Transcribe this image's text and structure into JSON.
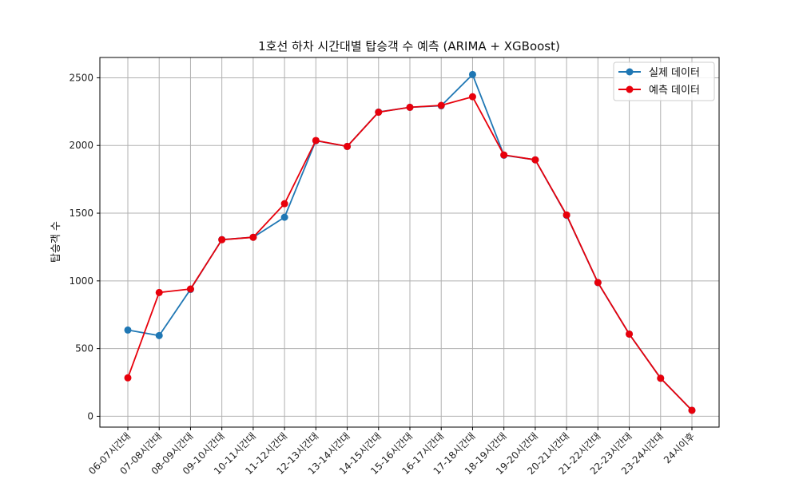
{
  "chart_data": {
    "type": "line",
    "title": "1호선 하차 시간대별 탑승객 수 예측 (ARIMA + XGBoost)",
    "xlabel": "",
    "ylabel": "탑승객 수",
    "categories": [
      "06-07시간대",
      "07-08시간대",
      "08-09시간대",
      "09-10시간대",
      "10-11시간대",
      "11-12시간대",
      "12-13시간대",
      "13-14시간대",
      "14-15시간대",
      "15-16시간대",
      "16-17시간대",
      "17-18시간대",
      "18-19시간대",
      "19-20시간대",
      "20-21시간대",
      "21-22시간대",
      "22-23시간대",
      "23-24시간대",
      "24시이후"
    ],
    "series": [
      {
        "name": "실제 데이터",
        "color": "#1f77b4",
        "values": [
          637,
          596,
          937,
          1305,
          1322,
          1470,
          2035,
          1993,
          2247,
          2282,
          2293,
          2524,
          1928,
          1894,
          1484,
          987,
          607,
          281,
          44
        ]
      },
      {
        "name": "예측 데이터",
        "color": "#e8000b",
        "values": [
          284,
          914,
          940,
          1304,
          1322,
          1570,
          2037,
          1993,
          2246,
          2282,
          2296,
          2360,
          1930,
          1894,
          1487,
          988,
          607,
          281,
          44
        ]
      }
    ],
    "ylim": [
      -80,
      2650
    ],
    "yticks": [
      0,
      500,
      1000,
      1500,
      2000,
      2500
    ],
    "grid": true,
    "legend_position": "top-right"
  }
}
